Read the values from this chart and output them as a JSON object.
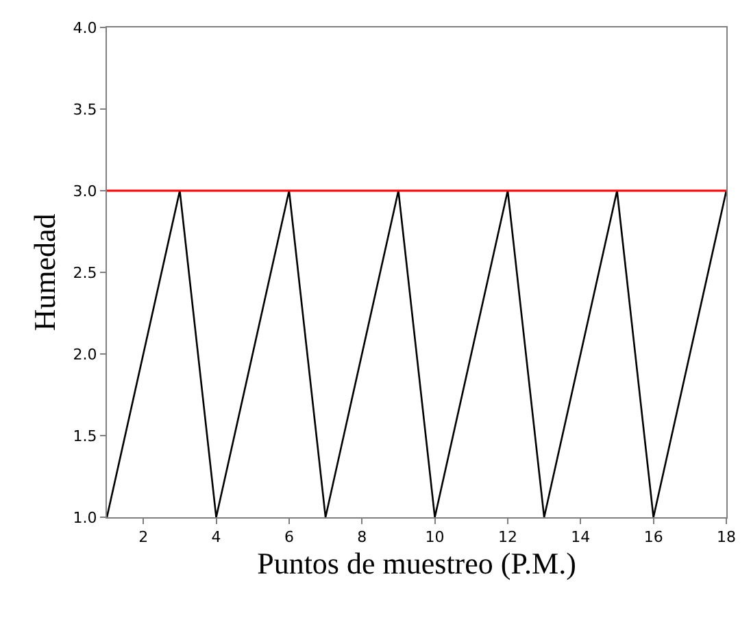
{
  "chart_data": {
    "type": "line",
    "xlabel": "Puntos de muestreo (P.M.)",
    "ylabel": "Humedad",
    "x": [
      1,
      3,
      4,
      6,
      7,
      9,
      10,
      12,
      13,
      15,
      16,
      18
    ],
    "series": [
      {
        "color": "#000000",
        "values": [
          1,
          3,
          1,
          3,
          1,
          3,
          1,
          3,
          1,
          3,
          1,
          3
        ]
      }
    ],
    "xlim": [
      1,
      18
    ],
    "xticks": [
      2,
      4,
      6,
      8,
      10,
      12,
      14,
      16,
      18
    ],
    "ylim": [
      1,
      4
    ],
    "yticks": [
      {
        "value": 1,
        "label": "1.0"
      },
      {
        "value": 1.5,
        "label": "1.5"
      },
      {
        "value": 2,
        "label": "2.0"
      },
      {
        "value": 2.5,
        "label": "2.5"
      },
      {
        "value": 3,
        "label": "3.0"
      },
      {
        "value": 3.5,
        "label": "3.5"
      },
      {
        "value": 4,
        "label": "4.0"
      }
    ],
    "ref_lines": [
      {
        "axis": "y",
        "value": 3,
        "color": "#ff0000"
      }
    ],
    "marker": "none",
    "line_style": "solid"
  }
}
